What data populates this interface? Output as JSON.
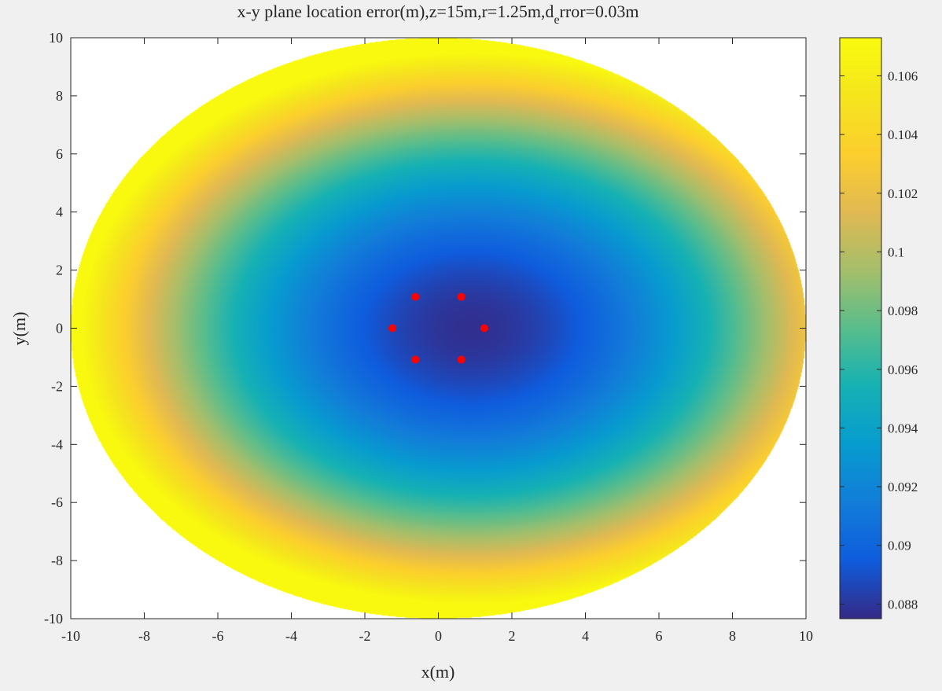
{
  "chart_data": {
    "type": "heatmap",
    "title_main": "x-y plane location error(m),z=15m,r=1.25m,d",
    "title_sub": "e",
    "title_tail": "rror=0.03m",
    "xlabel": "x(m)",
    "ylabel": "y(m)",
    "xlim": [
      -10,
      10
    ],
    "ylim": [
      -10,
      10
    ],
    "xticks": [
      -10,
      -8,
      -6,
      -4,
      -2,
      0,
      2,
      4,
      6,
      8,
      10
    ],
    "yticks": [
      -10,
      -8,
      -6,
      -4,
      -2,
      0,
      2,
      4,
      6,
      8,
      10
    ],
    "colormap": "parula",
    "clim": [
      0.0875,
      0.1073
    ],
    "colorbar_ticks": [
      {
        "value": 0.088,
        "label": "0.088"
      },
      {
        "value": 0.09,
        "label": "0.09"
      },
      {
        "value": 0.092,
        "label": "0.092"
      },
      {
        "value": 0.094,
        "label": "0.094"
      },
      {
        "value": 0.096,
        "label": "0.096"
      },
      {
        "value": 0.098,
        "label": "0.098"
      },
      {
        "value": 0.1,
        "label": "0.1"
      },
      {
        "value": 0.102,
        "label": "0.102"
      },
      {
        "value": 0.104,
        "label": "0.104"
      },
      {
        "value": 0.106,
        "label": "0.106"
      }
    ],
    "region": {
      "shape": "disk",
      "radius": 10
    },
    "error_field": {
      "min": 0.0877,
      "min_at": [
        0.9,
        0
      ],
      "max": 0.1071
    },
    "anchors": {
      "color": "#ff0000",
      "points": [
        {
          "x": 1.25,
          "y": 0
        },
        {
          "x": 0.625,
          "y": 1.08
        },
        {
          "x": -0.625,
          "y": 1.08
        },
        {
          "x": -1.25,
          "y": 0
        },
        {
          "x": -0.625,
          "y": -1.08
        },
        {
          "x": 0.625,
          "y": -1.08
        }
      ]
    },
    "grid": false,
    "colorbar": "right"
  }
}
